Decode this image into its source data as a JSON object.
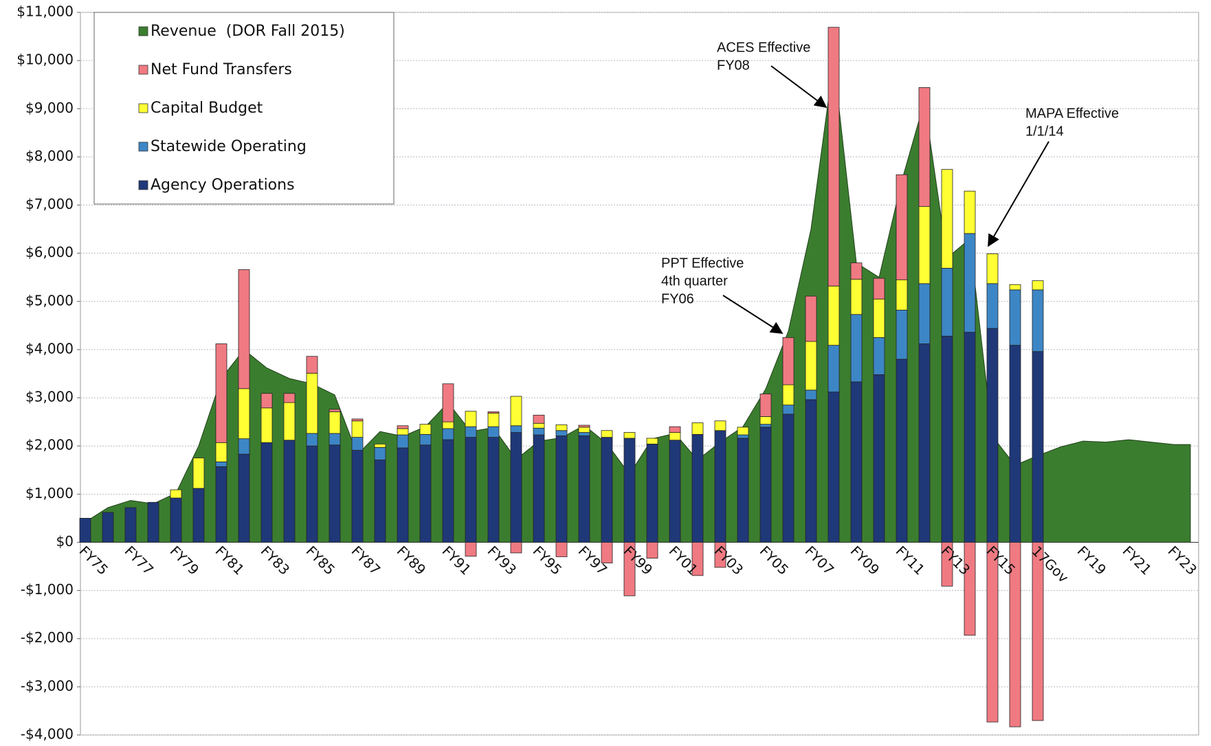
{
  "chart_data": {
    "type": "bar",
    "categories": [
      "FY75",
      null,
      "FY77",
      null,
      "FY79",
      null,
      "FY81",
      null,
      "FY83",
      null,
      "FY85",
      null,
      "FY87",
      null,
      "FY89",
      null,
      "FY91",
      null,
      "FY93",
      null,
      "FY95",
      null,
      "FY97",
      null,
      "FY99",
      null,
      "FY01",
      null,
      "FY03",
      null,
      "FY05",
      null,
      "FY07",
      null,
      "FY09",
      null,
      "FY11",
      null,
      "FY13",
      null,
      "FY15",
      null,
      "17Gov",
      null,
      "FY19",
      null,
      "FY21",
      null,
      "FY23"
    ],
    "series": [
      {
        "name": "Revenue  (DOR Fall 2015)",
        "type": "area",
        "color": "#3b7d2f",
        "values": [
          420,
          720,
          870,
          800,
          1020,
          2000,
          3400,
          4000,
          3620,
          3400,
          3290,
          3060,
          1820,
          2300,
          2200,
          2400,
          2900,
          2300,
          2380,
          1720,
          2100,
          2170,
          2430,
          2050,
          1410,
          2150,
          2260,
          1710,
          2080,
          2400,
          3180,
          4380,
          6500,
          10000,
          5800,
          5500,
          7500,
          9150,
          5900,
          6300,
          2200,
          1600,
          1800,
          1980,
          2100,
          2080,
          2130,
          2080,
          2030
        ]
      },
      {
        "name": "Net Fund Transfers",
        "type": "bar",
        "color": "#f07a82",
        "values": [
          0,
          0,
          0,
          0,
          0,
          0,
          2050,
          2470,
          300,
          190,
          350,
          50,
          40,
          0,
          60,
          0,
          790,
          -290,
          30,
          -220,
          170,
          -300,
          40,
          -430,
          -1110,
          -330,
          120,
          -690,
          -520,
          0,
          470,
          980,
          940,
          5370,
          340,
          430,
          2180,
          2470,
          -910,
          -1930,
          -3730,
          -3830,
          -3700,
          null,
          null,
          null,
          null,
          null,
          null
        ]
      },
      {
        "name": "Capital Budget",
        "type": "bar",
        "color": "#ffff33",
        "values": [
          0,
          0,
          0,
          0,
          170,
          630,
          400,
          1040,
          720,
          780,
          1250,
          450,
          340,
          70,
          130,
          210,
          140,
          320,
          280,
          610,
          100,
          120,
          110,
          140,
          120,
          120,
          160,
          240,
          200,
          160,
          160,
          420,
          1010,
          1230,
          730,
          800,
          630,
          1600,
          2050,
          880,
          620,
          110,
          190,
          null,
          null,
          null,
          null,
          null,
          null
        ]
      },
      {
        "name": "Statewide Operating",
        "type": "bar",
        "color": "#3d86c6",
        "values": [
          0,
          0,
          0,
          0,
          0,
          0,
          100,
          320,
          0,
          0,
          260,
          240,
          270,
          260,
          270,
          220,
          230,
          220,
          220,
          140,
          140,
          110,
          70,
          0,
          0,
          0,
          0,
          0,
          0,
          70,
          60,
          190,
          200,
          970,
          1400,
          770,
          1020,
          1250,
          1410,
          2050,
          930,
          1150,
          1280,
          null,
          null,
          null,
          null,
          null,
          null
        ]
      },
      {
        "name": "Agency Operations",
        "type": "bar",
        "color": "#1f3878",
        "values": [
          500,
          620,
          720,
          830,
          920,
          1120,
          1570,
          1830,
          2070,
          2120,
          2000,
          2020,
          1910,
          1710,
          1960,
          2020,
          2130,
          2180,
          2180,
          2280,
          2230,
          2210,
          2210,
          2180,
          2160,
          2040,
          2120,
          2240,
          2320,
          2160,
          2390,
          2660,
          2960,
          3120,
          3330,
          3480,
          3800,
          4120,
          4280,
          4360,
          4440,
          4090,
          3960,
          null,
          null,
          null,
          null,
          null,
          null
        ]
      }
    ],
    "ylim": [
      -4000,
      11000
    ],
    "yticks": [
      {
        "value": -4000,
        "label": "-$4,000"
      },
      {
        "value": -3000,
        "label": "-$3,000"
      },
      {
        "value": -2000,
        "label": "-$2,000"
      },
      {
        "value": -1000,
        "label": "-$1,000"
      },
      {
        "value": 0,
        "label": "$0"
      },
      {
        "value": 1000,
        "label": "$1,000"
      },
      {
        "value": 2000,
        "label": "$2,000"
      },
      {
        "value": 3000,
        "label": "$3,000"
      },
      {
        "value": 4000,
        "label": "$4,000"
      },
      {
        "value": 5000,
        "label": "$5,000"
      },
      {
        "value": 6000,
        "label": "$6,000"
      },
      {
        "value": 7000,
        "label": "$7,000"
      },
      {
        "value": 8000,
        "label": "$8,000"
      },
      {
        "value": 9000,
        "label": "$9,000"
      },
      {
        "value": 10000,
        "label": "$10,000"
      },
      {
        "value": 11000,
        "label": "$11,000"
      }
    ],
    "grid": true,
    "legend": "top-left",
    "annotations": [
      {
        "lines": [
          "ACES Effective",
          "FY08"
        ]
      },
      {
        "lines": [
          "PPT Effective",
          "4th quarter",
          "FY06"
        ]
      },
      {
        "lines": [
          "MAPA Effective",
          "1/1/14"
        ]
      }
    ]
  }
}
